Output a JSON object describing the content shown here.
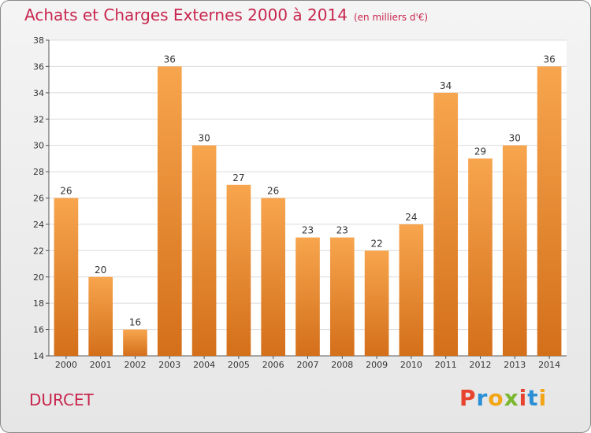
{
  "chart_data": {
    "type": "bar",
    "title": "Achats et Charges Externes 2000 à 2014",
    "subtitle": "(en milliers d'€)",
    "categories": [
      "2000",
      "2001",
      "2002",
      "2003",
      "2004",
      "2005",
      "2006",
      "2007",
      "2008",
      "2009",
      "2010",
      "2011",
      "2012",
      "2013",
      "2014"
    ],
    "values": [
      26,
      20,
      16,
      36,
      30,
      27,
      26,
      23,
      23,
      22,
      24,
      34,
      29,
      30,
      36
    ],
    "ylim": [
      14,
      38
    ],
    "yticks": [
      14,
      16,
      18,
      20,
      22,
      24,
      26,
      28,
      30,
      32,
      34,
      36,
      38
    ],
    "grid": true,
    "bar_color_top": "#f7a54e",
    "bar_color_bottom": "#d46f1a"
  },
  "footer": {
    "commune": "DURCET",
    "brand": "Proxiti"
  },
  "colors": {
    "title": "#c8264e",
    "brand_letters": [
      "#e8432e",
      "#2b8fd6",
      "#f2a516",
      "#7ab72f",
      "#e8432e",
      "#2b8fd6",
      "#f2a516"
    ]
  }
}
